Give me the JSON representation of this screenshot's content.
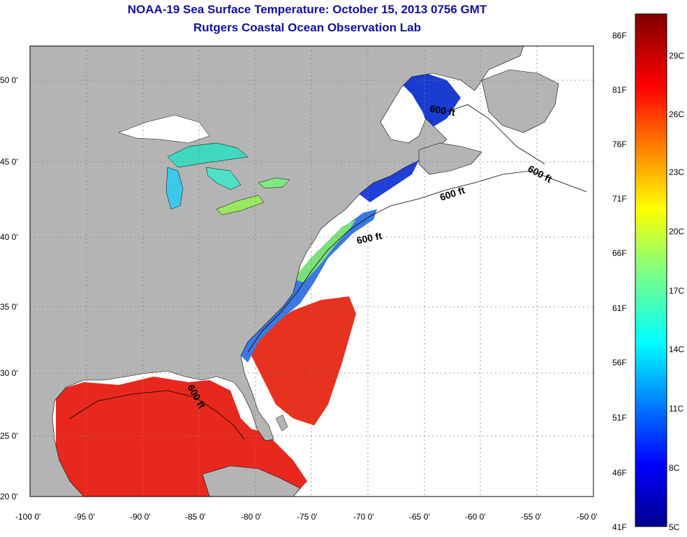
{
  "title_line1": "NOAA-19 Sea Surface Temperature:  October 15, 2013 0756 GMT",
  "title_line2": "Rutgers Coastal Ocean Observation Lab",
  "lat_labels": [
    "50 0'",
    "45 0'",
    "40 0'",
    "35 0'",
    "30 0'",
    "25 0'",
    "20 0'"
  ],
  "lon_labels": [
    "-100 0'",
    "-95 0'",
    "-90 0'",
    "-85 0'",
    "-80 0'",
    "-75 0'",
    "-70 0'",
    "-65 0'",
    "-60 0'",
    "-55 0'",
    "-50 0'"
  ],
  "contour_labels": [
    "600 ft",
    "600 ft",
    "600 ft",
    "600 ft",
    "600 ft"
  ],
  "colorbar": {
    "fahrenheit": [
      "86F",
      "81F",
      "76F",
      "71F",
      "66F",
      "61F",
      "56F",
      "51F",
      "46F",
      "41F"
    ],
    "celsius": [
      "29C",
      "26C",
      "23C",
      "20C",
      "17C",
      "14C",
      "11C",
      "8C",
      "5C"
    ]
  },
  "colors": {
    "land": "#b4b4b4",
    "ocean_no_data": "#ffffff",
    "title": "#1010a0",
    "grid": "#808080"
  }
}
